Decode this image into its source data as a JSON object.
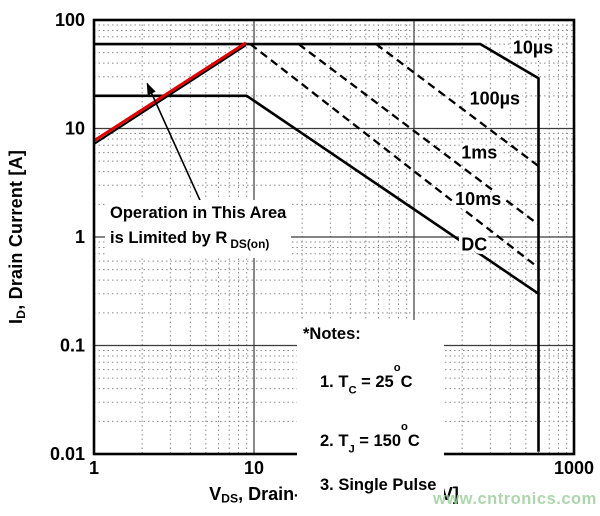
{
  "watermark": {
    "text": "www.cntronics.com",
    "color": "#9fd09f"
  },
  "annotation": {
    "line1": "Operation in This Area",
    "line2": {
      "pre": "is Limited by R",
      "sub": "DS(on)"
    },
    "arrow": {
      "from": [
        4.65,
        2.1
      ],
      "to": [
        2.15,
        26
      ]
    }
  },
  "notes": {
    "title": "*Notes:",
    "items": [
      [
        {
          "t": "1. T"
        },
        {
          "t": "C",
          "s": "sub"
        },
        {
          "t": " = 25"
        },
        {
          "t": "o",
          "s": "sup"
        },
        {
          "t": "C"
        }
      ],
      [
        {
          "t": "2. T"
        },
        {
          "t": "J",
          "s": "sub"
        },
        {
          "t": " = 150"
        },
        {
          "t": "o",
          "s": "sup"
        },
        {
          "t": "C"
        }
      ],
      [
        {
          "t": "3. Single Pulse"
        }
      ]
    ]
  },
  "chart_data": {
    "type": "line",
    "title": "",
    "x_axis": {
      "scale": "log",
      "min": 1,
      "max": 1000,
      "ticks": [
        {
          "v": 1,
          "label": "1"
        },
        {
          "v": 10,
          "label": "10"
        },
        {
          "v": 100,
          "label": "100"
        },
        {
          "v": 1000,
          "label": "1000"
        }
      ],
      "label": {
        "lead": "V",
        "sub": "DS",
        "rest": ", Drain-Source Voltage [V]"
      }
    },
    "y_axis": {
      "scale": "log",
      "min": 0.01,
      "max": 100,
      "ticks": [
        {
          "v": 100,
          "label": "100"
        },
        {
          "v": 10,
          "label": "10"
        },
        {
          "v": 1,
          "label": "1"
        },
        {
          "v": 0.1,
          "label": "0.1"
        },
        {
          "v": 0.01,
          "label": "0.01"
        }
      ],
      "label": {
        "lead": "I",
        "sub": "D",
        "rest": ", Drain Current [A]"
      }
    },
    "grid": {
      "major_color": "#3a3a3a",
      "minor_color": "#8a8a8a",
      "minor_style": "dotted"
    },
    "series": [
      {
        "name": "pulse-10us",
        "label": "10µs",
        "style": "solid",
        "color": "#000000",
        "width": 2.6,
        "points": [
          [
            1,
            60
          ],
          [
            260,
            60
          ],
          [
            600,
            29
          ],
          [
            600,
            0.0105
          ]
        ],
        "label_at": [
          555,
          56
        ]
      },
      {
        "name": "pulse-100us",
        "label": "100µs",
        "style": "dashed",
        "color": "#000000",
        "width": 2.3,
        "points": [
          [
            58,
            60
          ],
          [
            600,
            4.5
          ]
        ],
        "label_at": [
          320,
          19
        ]
      },
      {
        "name": "pulse-1ms",
        "label": "1ms",
        "style": "dashed",
        "color": "#000000",
        "width": 2.3,
        "points": [
          [
            19,
            60
          ],
          [
            600,
            1.3
          ]
        ],
        "label_at": [
          256,
          6.0
        ]
      },
      {
        "name": "pulse-10ms",
        "label": "10ms",
        "style": "dashed",
        "color": "#000000",
        "width": 2.3,
        "points": [
          [
            9.5,
            60
          ],
          [
            600,
            0.52
          ]
        ],
        "label_at": [
          252,
          2.25
        ]
      },
      {
        "name": "dc",
        "label": "DC",
        "style": "solid",
        "color": "#000000",
        "width": 2.6,
        "points": [
          [
            1,
            20
          ],
          [
            9,
            20
          ],
          [
            600,
            0.3
          ]
        ],
        "label_at": [
          238,
          0.85
        ]
      },
      {
        "name": "rdson-boundary",
        "label": "",
        "style": "solid",
        "color": "#000000",
        "width": 2.0,
        "points": [
          [
            1,
            7.2
          ],
          [
            8.9,
            58.5
          ]
        ]
      },
      {
        "name": "rdson-red-limit",
        "label": "",
        "style": "solid",
        "color": "#e00000",
        "width": 3.0,
        "points": [
          [
            1,
            7.7
          ],
          [
            8.9,
            61.5
          ]
        ]
      }
    ]
  }
}
